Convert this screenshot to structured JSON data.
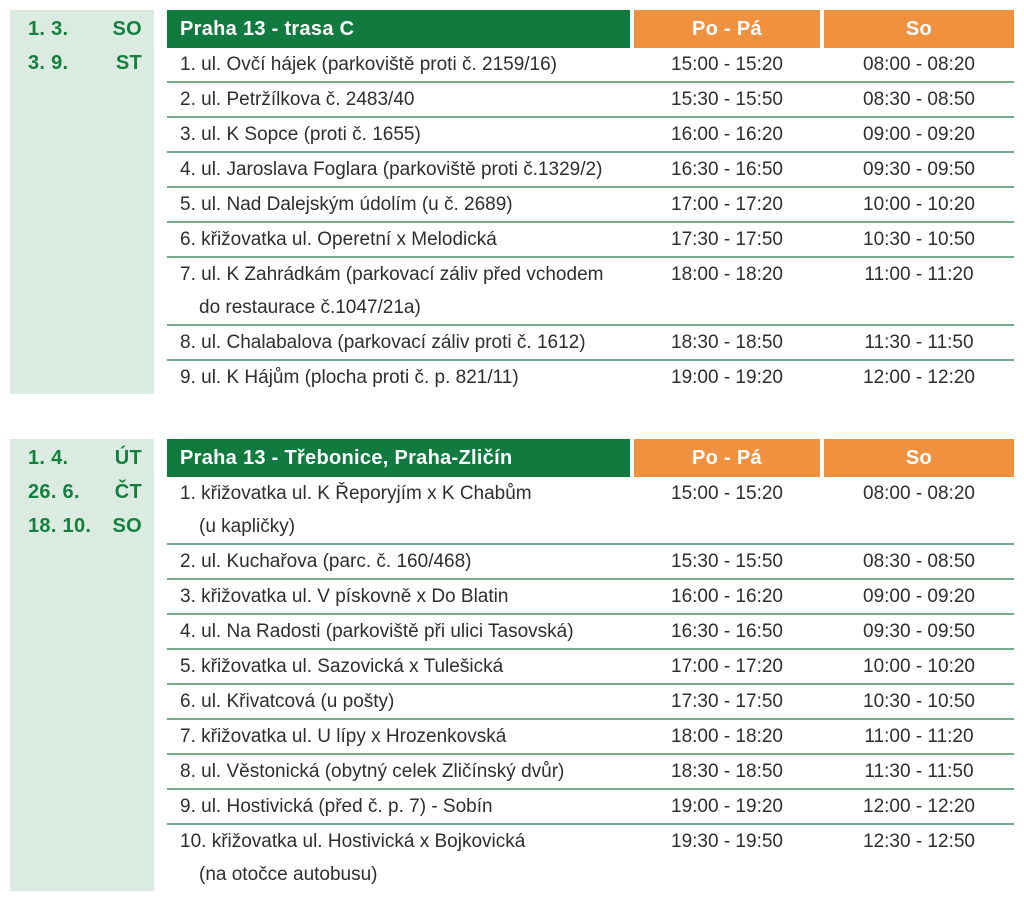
{
  "colors": {
    "header_green": "#117a3e",
    "header_orange": "#f09140",
    "sidebar_green": "#dcebe2",
    "separator_green": "#75aa8c",
    "date_text_green": "#15803d",
    "row_text": "#2e2e2e",
    "header_text": "#ffffff"
  },
  "tables": [
    {
      "dates": [
        {
          "date": "1. 3.",
          "day": "SO"
        },
        {
          "date": "3. 9.",
          "day": "ST"
        }
      ],
      "title": "Praha 13 - trasa C",
      "columns": {
        "weekday": "Po - Pá",
        "saturday": "So"
      },
      "rows": [
        {
          "name_lines": [
            "1. ul. Ovčí hájek (parkoviště proti č. 2159/16)"
          ],
          "weekday": "15:00 - 15:20",
          "saturday": "08:00 - 08:20"
        },
        {
          "name_lines": [
            "2. ul. Petržílkova č. 2483/40"
          ],
          "weekday": "15:30 - 15:50",
          "saturday": "08:30 - 08:50"
        },
        {
          "name_lines": [
            "3. ul. K Sopce (proti č. 1655)"
          ],
          "weekday": "16:00 - 16:20",
          "saturday": "09:00 - 09:20"
        },
        {
          "name_lines": [
            "4. ul. Jaroslava Foglara (parkoviště proti č.1329/2)"
          ],
          "weekday": "16:30 - 16:50",
          "saturday": "09:30 - 09:50"
        },
        {
          "name_lines": [
            "5. ul. Nad Dalejským údolím (u č. 2689)"
          ],
          "weekday": "17:00 - 17:20",
          "saturday": "10:00 - 10:20"
        },
        {
          "name_lines": [
            "6. křižovatka ul. Operetní x Melodická"
          ],
          "weekday": "17:30 - 17:50",
          "saturday": "10:30 - 10:50"
        },
        {
          "name_lines": [
            "7. ul. K Zahrádkám (parkovací záliv před vchodem",
            "do restaurace č.1047/21a)"
          ],
          "weekday": "18:00 - 18:20",
          "saturday": "11:00 - 11:20"
        },
        {
          "name_lines": [
            "8. ul. Chalabalova (parkovací záliv proti č. 1612)"
          ],
          "weekday": "18:30 - 18:50",
          "saturday": "11:30 - 11:50"
        },
        {
          "name_lines": [
            "9. ul. K Hájům (plocha proti č. p. 821/11)"
          ],
          "weekday": "19:00 - 19:20",
          "saturday": "12:00 - 12:20"
        }
      ]
    },
    {
      "dates": [
        {
          "date": "1. 4.",
          "day": "ÚT"
        },
        {
          "date": "26. 6.",
          "day": "ČT"
        },
        {
          "date": "18. 10.",
          "day": "SO"
        }
      ],
      "title": "Praha 13 - Třebonice, Praha-Zličín",
      "columns": {
        "weekday": "Po - Pá",
        "saturday": "So"
      },
      "rows": [
        {
          "name_lines": [
            "1. křižovatka ul. K Řeporyjím x K Chabům",
            "(u kapličky)"
          ],
          "weekday": "15:00 - 15:20",
          "saturday": "08:00 - 08:20"
        },
        {
          "name_lines": [
            "2. ul. Kuchařova (parc. č. 160/468)"
          ],
          "weekday": "15:30 - 15:50",
          "saturday": "08:30 - 08:50"
        },
        {
          "name_lines": [
            "3. křižovatka ul. V pískovně x Do Blatin"
          ],
          "weekday": "16:00 - 16:20",
          "saturday": "09:00 - 09:20"
        },
        {
          "name_lines": [
            "4. ul. Na Radosti (parkoviště při ulici Tasovská)"
          ],
          "weekday": "16:30 - 16:50",
          "saturday": "09:30 - 09:50"
        },
        {
          "name_lines": [
            "5. křižovatka ul. Sazovická x Tulešická"
          ],
          "weekday": "17:00 - 17:20",
          "saturday": "10:00 - 10:20"
        },
        {
          "name_lines": [
            "6. ul. Křivatcová (u pošty)"
          ],
          "weekday": "17:30 - 17:50",
          "saturday": "10:30 - 10:50"
        },
        {
          "name_lines": [
            "7. křižovatka ul. U lípy x Hrozenkovská"
          ],
          "weekday": "18:00 - 18:20",
          "saturday": "11:00 - 11:20"
        },
        {
          "name_lines": [
            "8. ul. Věstonická (obytný celek Zličínský dvůr)"
          ],
          "weekday": "18:30 - 18:50",
          "saturday": "11:30 - 11:50"
        },
        {
          "name_lines": [
            "9. ul. Hostivická (před č. p. 7) - Sobín"
          ],
          "weekday": "19:00 - 19:20",
          "saturday": "12:00 - 12:20"
        },
        {
          "name_lines": [
            "10. křižovatka ul. Hostivická x Bojkovická",
            "(na otočce autobusu)"
          ],
          "weekday": "19:30 - 19:50",
          "saturday": "12:30 - 12:50"
        }
      ]
    }
  ]
}
